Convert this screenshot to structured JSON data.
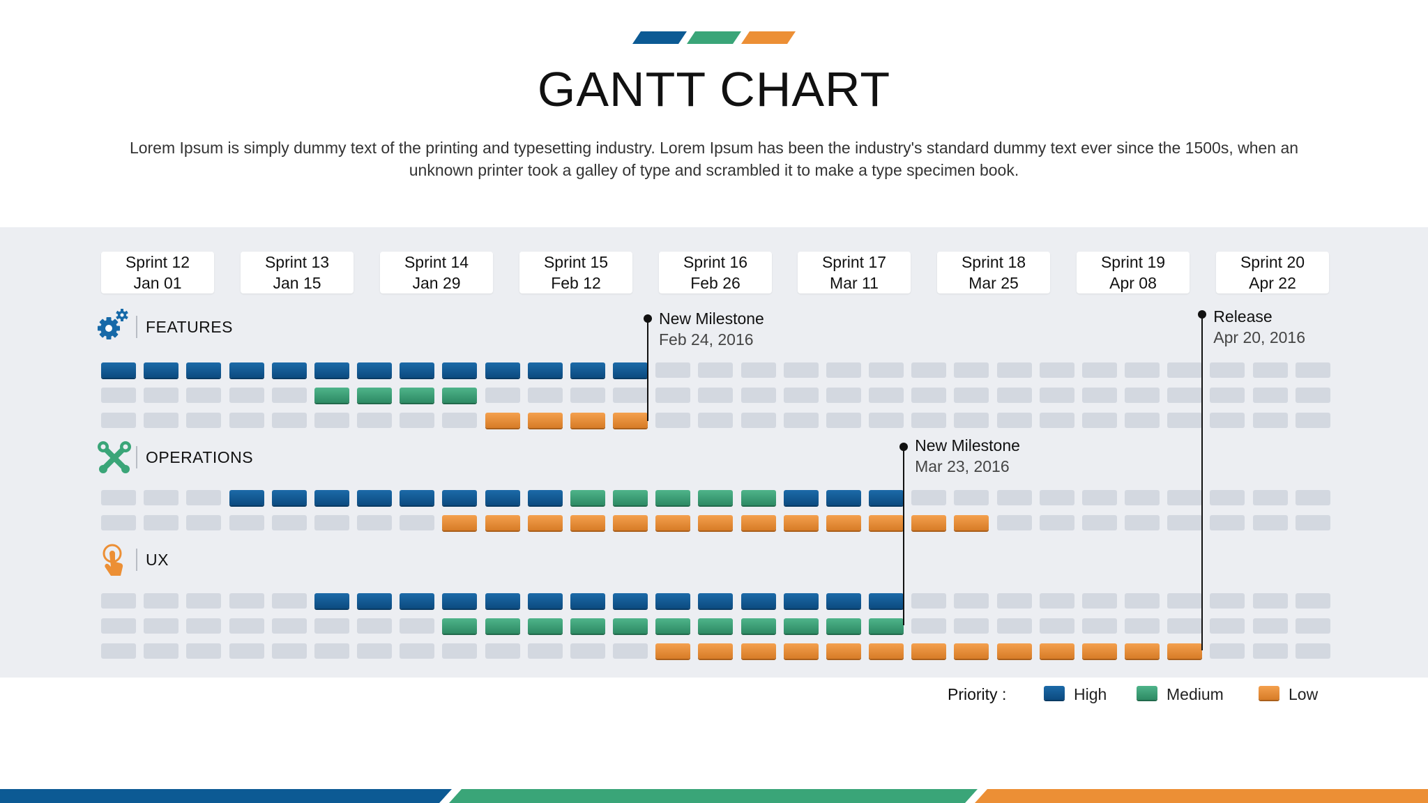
{
  "title": "GANTT CHART",
  "subtitle": "Lorem Ipsum is simply dummy text of the printing and typesetting industry. Lorem Ipsum has been the industry's standard dummy text ever since the 1500s, when an unknown printer took a galley of type and scrambled it to make a type specimen book.",
  "colors": {
    "high": "#0c5a94",
    "medium": "#3aa578",
    "low": "#ec8f35",
    "empty": "#d3d8e0",
    "panel": "#eceef2"
  },
  "chart_data": {
    "type": "gantt",
    "title": "GANTT CHART",
    "sprints": [
      {
        "name": "Sprint 12",
        "date": "Jan 01"
      },
      {
        "name": "Sprint 13",
        "date": "Jan 15"
      },
      {
        "name": "Sprint 14",
        "date": "Jan 29"
      },
      {
        "name": "Sprint 15",
        "date": "Feb 12"
      },
      {
        "name": "Sprint 16",
        "date": "Feb 26"
      },
      {
        "name": "Sprint 17",
        "date": "Mar 11"
      },
      {
        "name": "Sprint 18",
        "date": "Mar 25"
      },
      {
        "name": "Sprint 19",
        "date": "Apr 08"
      },
      {
        "name": "Sprint 20",
        "date": "Apr 22"
      }
    ],
    "weeks": 29,
    "groups": [
      {
        "name": "FEATURES",
        "icon": "gears-icon",
        "rows": [
          {
            "priority": "high",
            "start": 0,
            "end": 12
          },
          {
            "priority": "medium",
            "start": 5,
            "end": 8
          },
          {
            "priority": "low",
            "start": 9,
            "end": 12
          }
        ]
      },
      {
        "name": "OPERATIONS",
        "icon": "tools-icon",
        "rows": [
          {
            "segments": [
              {
                "priority": "high",
                "start": 3,
                "end": 10
              },
              {
                "priority": "medium",
                "start": 11,
                "end": 15
              },
              {
                "priority": "high",
                "start": 16,
                "end": 18
              }
            ]
          },
          {
            "priority": "low",
            "start": 8,
            "end": 20
          }
        ]
      },
      {
        "name": "UX",
        "icon": "touch-icon",
        "rows": [
          {
            "priority": "high",
            "start": 5,
            "end": 18
          },
          {
            "priority": "medium",
            "start": 8,
            "end": 18
          },
          {
            "priority": "low",
            "start": 13,
            "end": 25
          }
        ]
      }
    ],
    "milestones": [
      {
        "label": "New Milestone",
        "date": "Feb 24, 2016",
        "after_week": 12
      },
      {
        "label": "New Milestone",
        "date": "Mar 23, 2016",
        "after_week": 18
      },
      {
        "label": "Release",
        "date": "Apr 20, 2016",
        "after_week": 25
      }
    ],
    "legend": {
      "title": "Priority :",
      "items": [
        {
          "key": "high",
          "label": "High"
        },
        {
          "key": "medium",
          "label": "Medium"
        },
        {
          "key": "low",
          "label": "Low"
        }
      ]
    }
  }
}
